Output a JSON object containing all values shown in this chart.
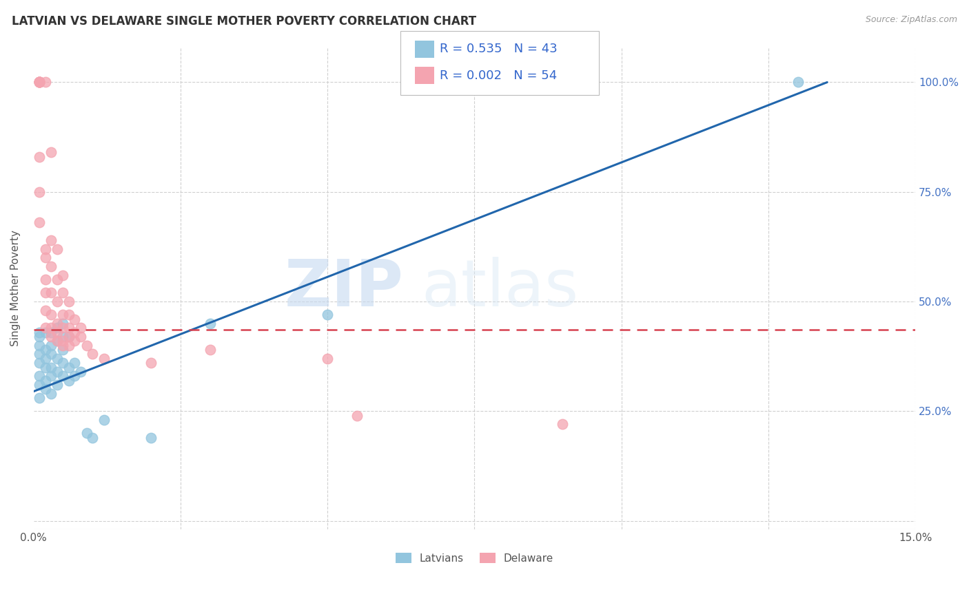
{
  "title": "LATVIAN VS DELAWARE SINGLE MOTHER POVERTY CORRELATION CHART",
  "source": "Source: ZipAtlas.com",
  "ylabel": "Single Mother Poverty",
  "xlim": [
    0.0,
    0.15
  ],
  "ylim": [
    -0.02,
    1.08
  ],
  "latvian_color": "#92c5de",
  "delaware_color": "#f4a4b0",
  "trend_latvian_color": "#2166ac",
  "trend_delaware_color": "#d6404e",
  "R_latvian": 0.535,
  "N_latvian": 43,
  "R_delaware": 0.002,
  "N_delaware": 54,
  "watermark_zip": "ZIP",
  "watermark_atlas": "atlas",
  "background_color": "#ffffff",
  "y_tick_positions": [
    0.0,
    0.25,
    0.5,
    0.75,
    1.0
  ],
  "y_tick_labels_right": [
    "",
    "25.0%",
    "50.0%",
    "75.0%",
    "100.0%"
  ],
  "x_tick_positions": [
    0.0,
    0.025,
    0.05,
    0.075,
    0.1,
    0.125,
    0.15
  ],
  "latvians_scatter": [
    [
      0.001,
      0.31
    ],
    [
      0.001,
      0.33
    ],
    [
      0.001,
      0.36
    ],
    [
      0.001,
      0.38
    ],
    [
      0.001,
      0.4
    ],
    [
      0.001,
      0.42
    ],
    [
      0.001,
      0.43
    ],
    [
      0.001,
      0.28
    ],
    [
      0.002,
      0.3
    ],
    [
      0.002,
      0.32
    ],
    [
      0.002,
      0.35
    ],
    [
      0.002,
      0.37
    ],
    [
      0.002,
      0.39
    ],
    [
      0.002,
      0.43
    ],
    [
      0.003,
      0.29
    ],
    [
      0.003,
      0.33
    ],
    [
      0.003,
      0.35
    ],
    [
      0.003,
      0.38
    ],
    [
      0.003,
      0.4
    ],
    [
      0.003,
      0.43
    ],
    [
      0.004,
      0.31
    ],
    [
      0.004,
      0.34
    ],
    [
      0.004,
      0.37
    ],
    [
      0.004,
      0.41
    ],
    [
      0.004,
      0.44
    ],
    [
      0.005,
      0.33
    ],
    [
      0.005,
      0.36
    ],
    [
      0.005,
      0.39
    ],
    [
      0.005,
      0.42
    ],
    [
      0.005,
      0.45
    ],
    [
      0.006,
      0.32
    ],
    [
      0.006,
      0.35
    ],
    [
      0.006,
      0.42
    ],
    [
      0.007,
      0.33
    ],
    [
      0.007,
      0.36
    ],
    [
      0.008,
      0.34
    ],
    [
      0.009,
      0.2
    ],
    [
      0.01,
      0.19
    ],
    [
      0.012,
      0.23
    ],
    [
      0.02,
      0.19
    ],
    [
      0.03,
      0.45
    ],
    [
      0.05,
      0.47
    ],
    [
      0.13,
      1.0
    ]
  ],
  "delaware_scatter": [
    [
      0.001,
      1.0
    ],
    [
      0.001,
      1.0
    ],
    [
      0.001,
      1.0
    ],
    [
      0.001,
      1.0
    ],
    [
      0.001,
      1.0
    ],
    [
      0.001,
      1.0
    ],
    [
      0.001,
      1.0
    ],
    [
      0.001,
      0.83
    ],
    [
      0.001,
      0.75
    ],
    [
      0.001,
      0.68
    ],
    [
      0.002,
      1.0
    ],
    [
      0.002,
      0.62
    ],
    [
      0.002,
      0.6
    ],
    [
      0.002,
      0.55
    ],
    [
      0.002,
      0.52
    ],
    [
      0.002,
      0.48
    ],
    [
      0.002,
      0.44
    ],
    [
      0.003,
      0.84
    ],
    [
      0.003,
      0.64
    ],
    [
      0.003,
      0.58
    ],
    [
      0.003,
      0.52
    ],
    [
      0.003,
      0.47
    ],
    [
      0.003,
      0.44
    ],
    [
      0.003,
      0.42
    ],
    [
      0.004,
      0.62
    ],
    [
      0.004,
      0.55
    ],
    [
      0.004,
      0.5
    ],
    [
      0.004,
      0.45
    ],
    [
      0.004,
      0.43
    ],
    [
      0.004,
      0.41
    ],
    [
      0.005,
      0.56
    ],
    [
      0.005,
      0.52
    ],
    [
      0.005,
      0.47
    ],
    [
      0.005,
      0.44
    ],
    [
      0.005,
      0.41
    ],
    [
      0.005,
      0.4
    ],
    [
      0.006,
      0.5
    ],
    [
      0.006,
      0.47
    ],
    [
      0.006,
      0.44
    ],
    [
      0.006,
      0.42
    ],
    [
      0.006,
      0.4
    ],
    [
      0.007,
      0.46
    ],
    [
      0.007,
      0.43
    ],
    [
      0.007,
      0.41
    ],
    [
      0.008,
      0.44
    ],
    [
      0.008,
      0.42
    ],
    [
      0.009,
      0.4
    ],
    [
      0.01,
      0.38
    ],
    [
      0.012,
      0.37
    ],
    [
      0.02,
      0.36
    ],
    [
      0.03,
      0.39
    ],
    [
      0.05,
      0.37
    ],
    [
      0.055,
      0.24
    ],
    [
      0.09,
      0.22
    ]
  ],
  "trend_lv_x0": 0.0,
  "trend_lv_y0": 0.295,
  "trend_lv_x1": 0.135,
  "trend_lv_y1": 1.0,
  "trend_de_y": 0.435
}
